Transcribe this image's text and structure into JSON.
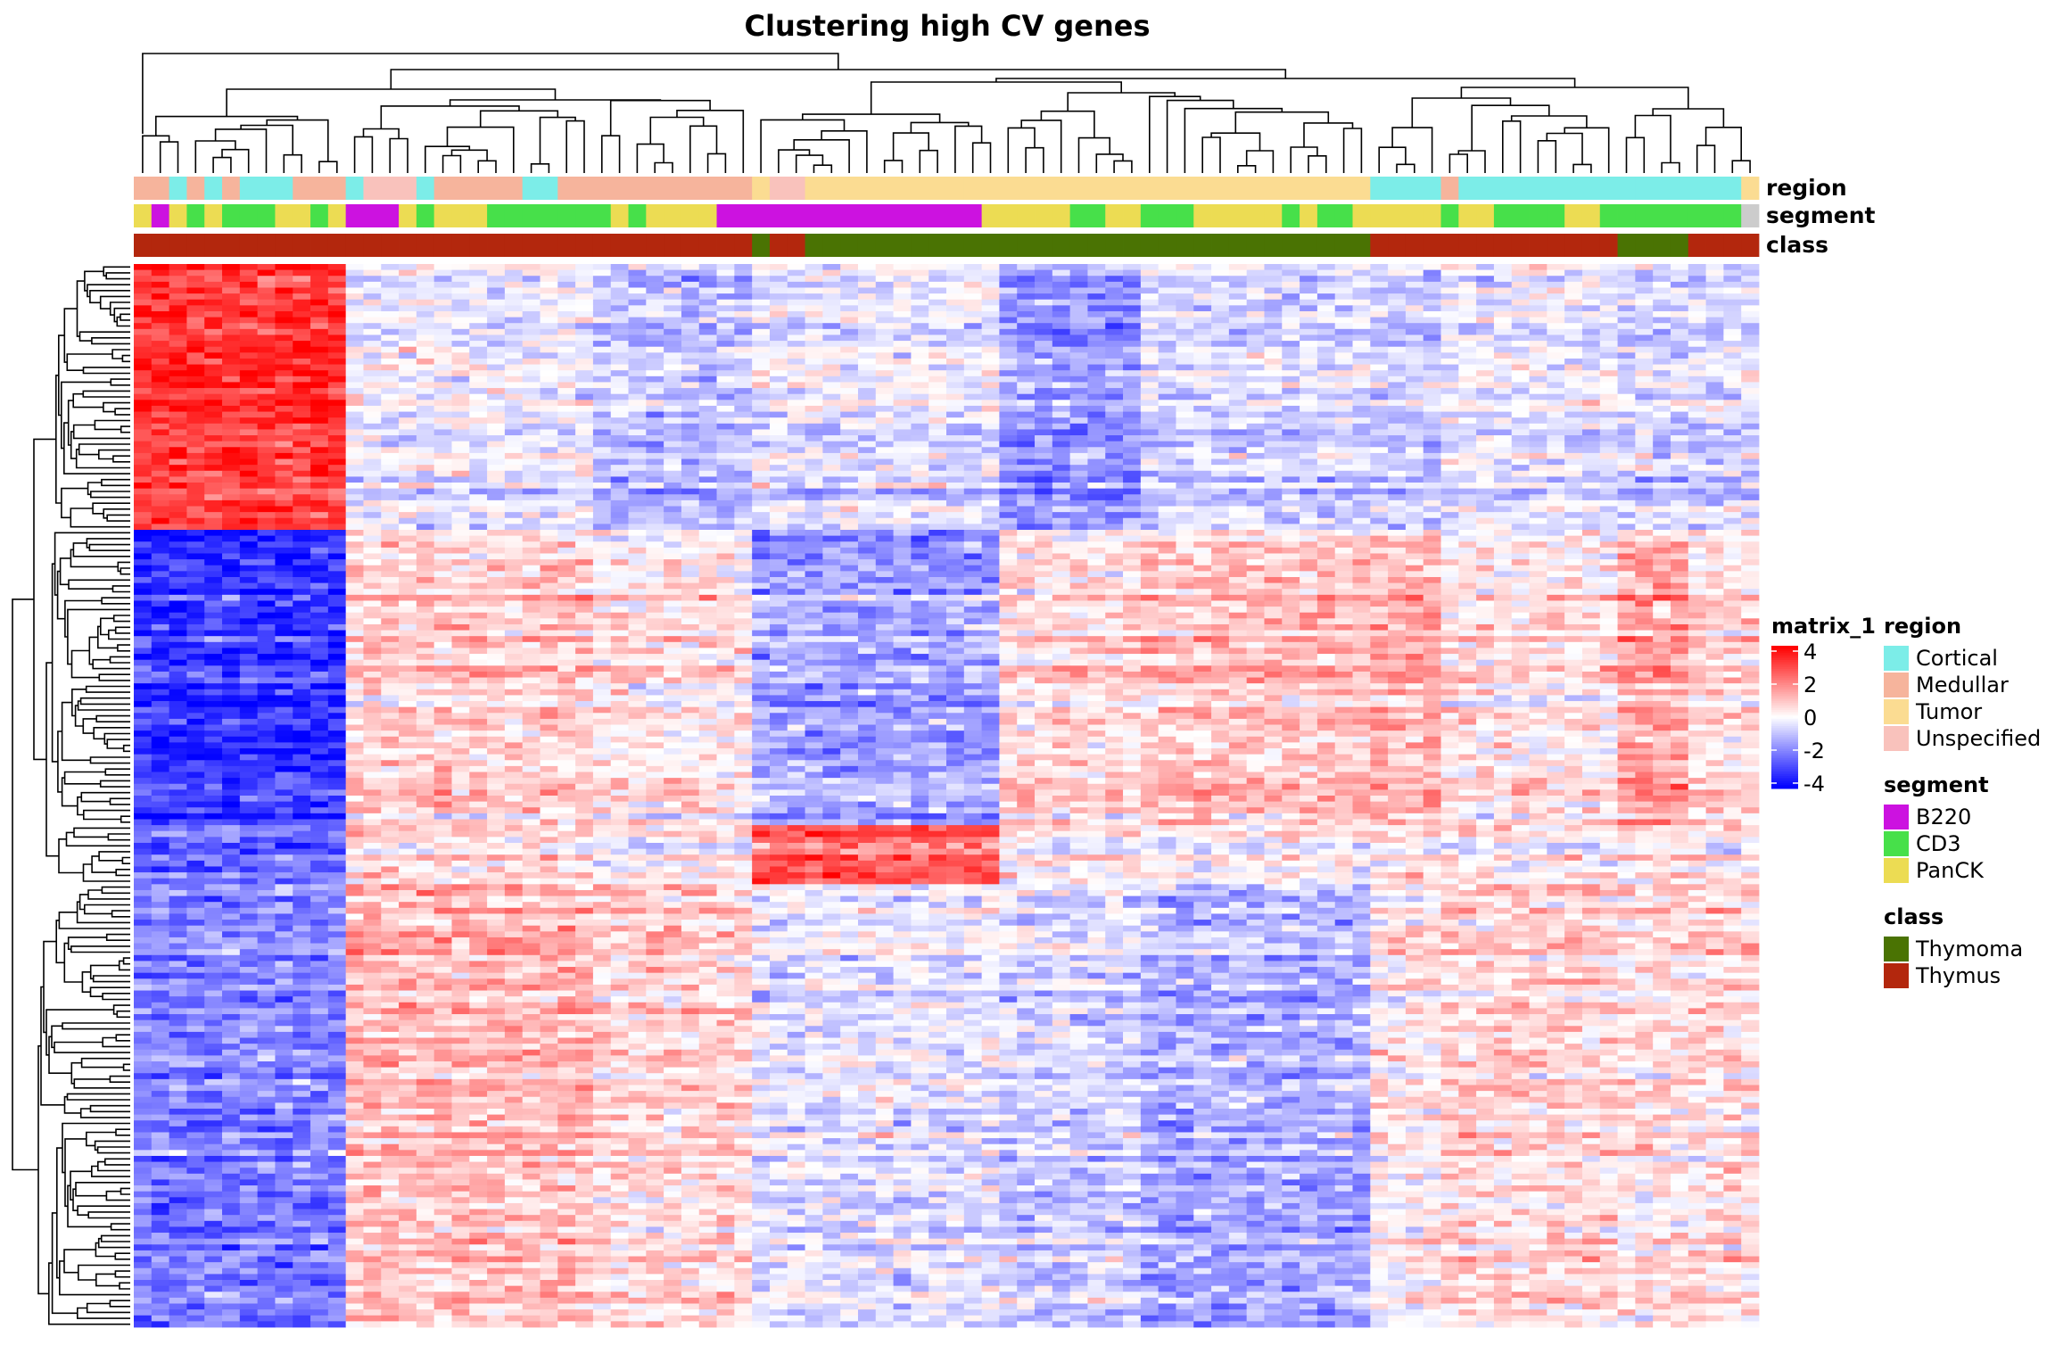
{
  "chart_data": {
    "type": "heatmap",
    "title": "Clustering high CV genes",
    "n_rows": 180,
    "row_blocks": [
      {
        "rows": 45,
        "column_group_means": [
          3.2,
          -0.2,
          -0.9,
          -0.3,
          -1.6,
          -0.6,
          -0.7,
          -0.3,
          -0.6,
          -0.5
        ]
      },
      {
        "rows": 50,
        "column_group_means": [
          -3.2,
          0.7,
          0.3,
          -1.5,
          0.5,
          0.9,
          1.2,
          0.3,
          1.4,
          0.5
        ]
      },
      {
        "rows": 10,
        "column_group_means": [
          -2.2,
          0.6,
          0.2,
          2.6,
          0.3,
          0.2,
          0.5,
          0.2,
          0.4,
          0.3
        ]
      },
      {
        "rows": 75,
        "column_group_means": [
          -2.0,
          1.0,
          0.6,
          -0.4,
          -0.7,
          -1.3,
          0.2,
          0.6,
          0.4,
          0.5
        ]
      }
    ],
    "column_annotations": {
      "region": [
        "Medullar",
        "Medullar",
        "Cortical",
        "Medullar",
        "Cortical",
        "Medullar",
        "Cortical",
        "Cortical",
        "Cortical",
        "Medullar",
        "Medullar",
        "Medullar",
        "Cortical",
        "Unspecified",
        "Unspecified",
        "Unspecified",
        "Cortical",
        "Medullar",
        "Medullar",
        "Medullar",
        "Medullar",
        "Medullar",
        "Cortical",
        "Cortical",
        "Medullar",
        "Medullar",
        "Medullar",
        "Medullar",
        "Medullar",
        "Medullar",
        "Medullar",
        "Medullar",
        "Medullar",
        "Medullar",
        "Medullar",
        "Tumor",
        "Unspecified",
        "Unspecified",
        "Tumor",
        "Tumor",
        "Tumor",
        "Tumor",
        "Tumor",
        "Tumor",
        "Tumor",
        "Tumor",
        "Tumor",
        "Tumor",
        "Tumor",
        "Tumor",
        "Tumor",
        "Tumor",
        "Tumor",
        "Tumor",
        "Tumor",
        "Tumor",
        "Tumor",
        "Tumor",
        "Tumor",
        "Tumor",
        "Tumor",
        "Tumor",
        "Tumor",
        "Tumor",
        "Tumor",
        "Tumor",
        "Tumor",
        "Tumor",
        "Tumor",
        "Tumor",
        "Cortical",
        "Cortical",
        "Cortical",
        "Cortical",
        "Medullar",
        "Cortical",
        "Cortical",
        "Cortical",
        "Cortical",
        "Cortical",
        "Cortical",
        "Cortical",
        "Cortical",
        "Cortical",
        "Cortical",
        "Cortical",
        "Cortical",
        "Cortical",
        "Cortical",
        "Cortical",
        "Cortical",
        "Tumor"
      ],
      "segment": [
        "PanCK",
        "B220",
        "PanCK",
        "CD3",
        "PanCK",
        "CD3",
        "CD3",
        "CD3",
        "PanCK",
        "PanCK",
        "CD3",
        "PanCK",
        "B220",
        "B220",
        "B220",
        "PanCK",
        "CD3",
        "PanCK",
        "PanCK",
        "PanCK",
        "CD3",
        "CD3",
        "CD3",
        "CD3",
        "CD3",
        "CD3",
        "CD3",
        "PanCK",
        "CD3",
        "PanCK",
        "PanCK",
        "PanCK",
        "PanCK",
        "B220",
        "B220",
        "B220",
        "B220",
        "B220",
        "B220",
        "B220",
        "B220",
        "B220",
        "B220",
        "B220",
        "B220",
        "B220",
        "B220",
        "B220",
        "PanCK",
        "PanCK",
        "PanCK",
        "PanCK",
        "PanCK",
        "CD3",
        "CD3",
        "PanCK",
        "PanCK",
        "CD3",
        "CD3",
        "CD3",
        "PanCK",
        "PanCK",
        "PanCK",
        "PanCK",
        "PanCK",
        "CD3",
        "PanCK",
        "CD3",
        "CD3",
        "PanCK",
        "PanCK",
        "PanCK",
        "PanCK",
        "PanCK",
        "CD3",
        "PanCK",
        "PanCK",
        "CD3",
        "CD3",
        "CD3",
        "CD3",
        "PanCK",
        "PanCK",
        "CD3",
        "CD3",
        "CD3",
        "CD3",
        "CD3",
        "CD3",
        "CD3",
        "CD3"
      ],
      "class": [
        "Thymus",
        "Thymus",
        "Thymus",
        "Thymus",
        "Thymus",
        "Thymus",
        "Thymus",
        "Thymus",
        "Thymus",
        "Thymus",
        "Thymus",
        "Thymus",
        "Thymus",
        "Thymus",
        "Thymus",
        "Thymus",
        "Thymus",
        "Thymus",
        "Thymus",
        "Thymus",
        "Thymus",
        "Thymus",
        "Thymus",
        "Thymus",
        "Thymus",
        "Thymus",
        "Thymus",
        "Thymus",
        "Thymus",
        "Thymus",
        "Thymus",
        "Thymus",
        "Thymus",
        "Thymus",
        "Thymus",
        "Thymoma",
        "Thymus",
        "Thymus",
        "Thymoma",
        "Thymoma",
        "Thymoma",
        "Thymoma",
        "Thymoma",
        "Thymoma",
        "Thymoma",
        "Thymoma",
        "Thymoma",
        "Thymoma",
        "Thymoma",
        "Thymoma",
        "Thymoma",
        "Thymoma",
        "Thymoma",
        "Thymoma",
        "Thymoma",
        "Thymoma",
        "Thymoma",
        "Thymoma",
        "Thymoma",
        "Thymoma",
        "Thymoma",
        "Thymoma",
        "Thymoma",
        "Thymoma",
        "Thymoma",
        "Thymoma",
        "Thymoma",
        "Thymoma",
        "Thymoma",
        "Thymoma",
        "Thymus",
        "Thymus",
        "Thymus",
        "Thymus",
        "Thymus",
        "Thymus",
        "Thymus",
        "Thymus",
        "Thymus",
        "Thymus",
        "Thymus",
        "Thymus",
        "Thymus",
        "Thymus",
        "Thymoma",
        "Thymoma",
        "Thymoma",
        "Thymoma",
        "Thymus",
        "Thymus",
        "Thymus",
        "Thymus"
      ]
    },
    "annotation_labels": [
      "region",
      "segment",
      "class"
    ],
    "color_scale": {
      "name": "matrix_1",
      "ticks": [
        "4",
        "2",
        "0",
        "-2",
        "-4"
      ],
      "range": [
        -4,
        4
      ],
      "low": "#0000ff",
      "mid": "#ffffff",
      "high": "#ff0000"
    },
    "legends": [
      {
        "title": "region",
        "entries": [
          {
            "label": "Cortical",
            "color": "#7cede8"
          },
          {
            "label": "Medullar",
            "color": "#f6b49c"
          },
          {
            "label": "Tumor",
            "color": "#fbdc92"
          },
          {
            "label": "Unspecified",
            "color": "#f9c2bc"
          }
        ]
      },
      {
        "title": "segment",
        "entries": [
          {
            "label": "B220",
            "color": "#cc12e0"
          },
          {
            "label": "CD3",
            "color": "#47e04a"
          },
          {
            "label": "PanCK",
            "color": "#ecdc53"
          }
        ]
      },
      {
        "title": "class",
        "entries": [
          {
            "label": "Thymoma",
            "color": "#4a7303"
          },
          {
            "label": "Thymus",
            "color": "#b3270d"
          }
        ]
      }
    ],
    "row_dendrogram": true,
    "column_dendrogram": true,
    "grid": false
  }
}
